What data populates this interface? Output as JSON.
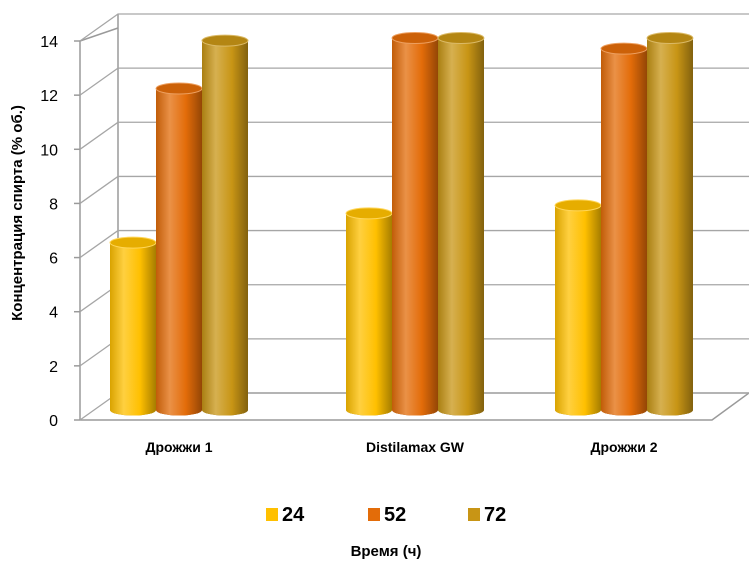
{
  "chart_data": {
    "type": "bar",
    "style": "3d-cylinder",
    "categories": [
      "Дрожжи 1",
      "Distilamax GW",
      "Дрожжи 2"
    ],
    "series": [
      {
        "name": "24",
        "values": [
          6.3,
          7.4,
          7.7
        ],
        "color": "#FFC000"
      },
      {
        "name": "52",
        "values": [
          12.1,
          14.0,
          13.6
        ],
        "color": "#E36C09"
      },
      {
        "name": "72",
        "values": [
          13.9,
          14.0,
          14.0
        ],
        "color": "#C89515"
      }
    ],
    "ylabel": "Концентрация спирта (% об.)",
    "xlabel": "Время (ч)",
    "ylim": [
      0,
      14
    ],
    "yticks": [
      0,
      2,
      4,
      6,
      8,
      10,
      12,
      14
    ],
    "grid": true,
    "legend_position": "bottom"
  }
}
